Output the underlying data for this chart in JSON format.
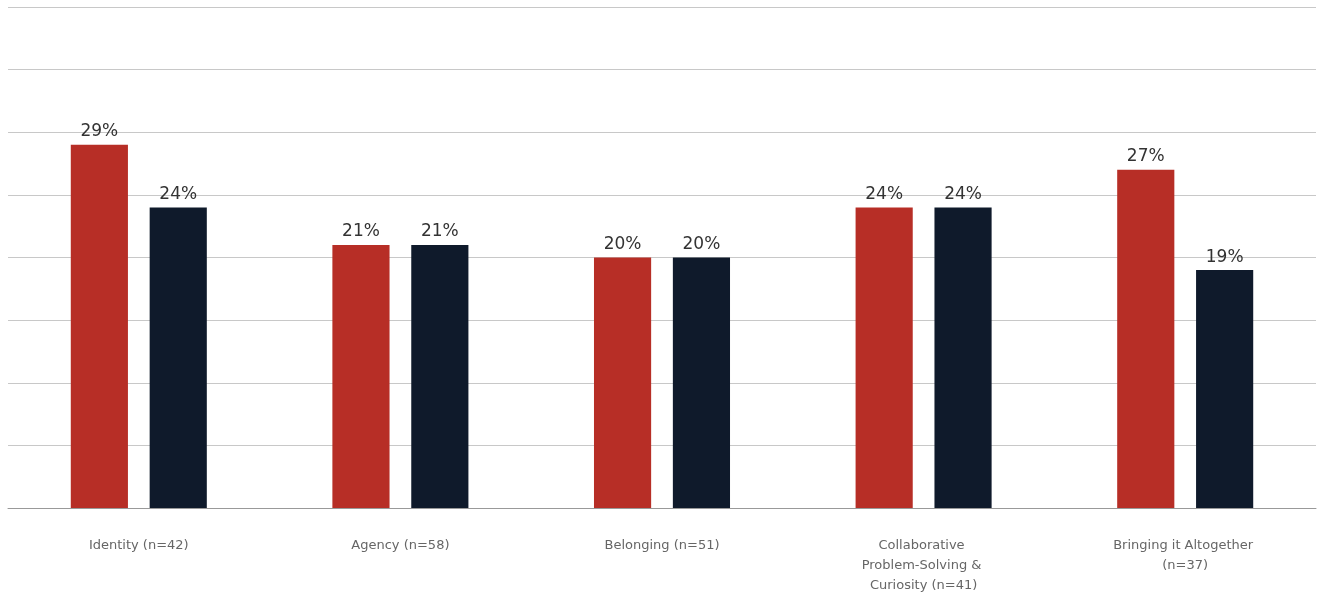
{
  "chart_data": {
    "type": "bar",
    "categories": [
      "Identity (n=42)",
      "Agency (n=58)",
      "Belonging (n=51)",
      "Collaborative Problem-Solving & Curiosity (n=41)",
      "Bringing it Altogether (n=37)"
    ],
    "series": [
      {
        "color": "#b72e26",
        "values": [
          29,
          21,
          20,
          24,
          27
        ],
        "value_labels": [
          "29%",
          "21%",
          "20%",
          "24%",
          "27%"
        ]
      },
      {
        "color": "#0f1a2b",
        "values": [
          24,
          21,
          20,
          24,
          19
        ],
        "value_labels": [
          "24%",
          "21%",
          "20%",
          "24%",
          "19%"
        ]
      }
    ],
    "ylim": [
      0,
      40
    ],
    "yticks": [
      {
        "value": 0,
        "label": null
      },
      {
        "value": 5,
        "label": null
      },
      {
        "value": 10,
        "label": null
      },
      {
        "value": 15,
        "label": null
      },
      {
        "value": 20,
        "label": null
      },
      {
        "value": 25,
        "label": null
      },
      {
        "value": 30,
        "label": null
      },
      {
        "value": 35,
        "label": null
      },
      {
        "value": 40,
        "label": null
      }
    ],
    "grid": "y",
    "tick_labels": "x"
  }
}
